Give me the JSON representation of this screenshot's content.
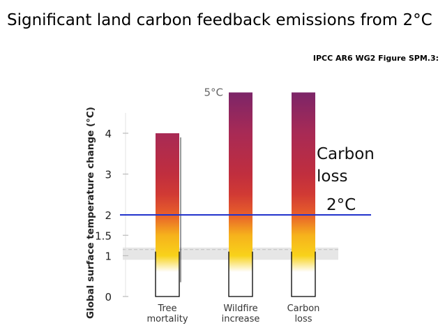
{
  "slide": {
    "title": "Significant land carbon feedback emissions from 2°C",
    "source": "IPCC AR6 WG2 Figure SPM.3:"
  },
  "chart_data": {
    "type": "bar",
    "ylabel": "Global surface temperature change (°C)",
    "ylim": [
      0,
      5
    ],
    "y_ticks": [
      "0",
      "1",
      "1.5",
      "2",
      "3",
      "4"
    ],
    "y_tick_values": [
      0,
      1,
      1.5,
      2,
      3,
      4
    ],
    "categories": [
      "Tree mortality",
      "Wildfire increase",
      "Carbon loss"
    ],
    "category_lines": [
      [
        "Tree",
        "mortality"
      ],
      [
        "Wildfire",
        "increase"
      ],
      [
        "Carbon",
        "loss"
      ]
    ],
    "bars": [
      {
        "category": "Tree mortality",
        "top": 4,
        "white_below": 0.5
      },
      {
        "category": "Wildfire increase",
        "top": 5,
        "white_below": 0.7
      },
      {
        "category": "Carbon loss",
        "top": 5,
        "white_below": 0.7
      }
    ],
    "bar_gradient": [
      {
        "level": 0.0,
        "color": "#ffffff"
      },
      {
        "level": 0.6,
        "color": "#ffffff"
      },
      {
        "level": 1.0,
        "color": "#f8d21a"
      },
      {
        "level": 1.5,
        "color": "#f6b21c"
      },
      {
        "level": 2.0,
        "color": "#e8602a"
      },
      {
        "level": 2.5,
        "color": "#d13a34"
      },
      {
        "level": 3.0,
        "color": "#c02e3e"
      },
      {
        "level": 4.0,
        "color": "#a82a55"
      },
      {
        "level": 5.0,
        "color": "#7c2568"
      }
    ],
    "top_annotation": "5°C",
    "reference_line": {
      "value": 2,
      "label": "2°C",
      "color": "#2233cc"
    },
    "side_annotation": [
      "Carbon",
      "loss"
    ],
    "band": {
      "from": 0.9,
      "to": 1.2,
      "color": "#e6e6e6"
    }
  }
}
